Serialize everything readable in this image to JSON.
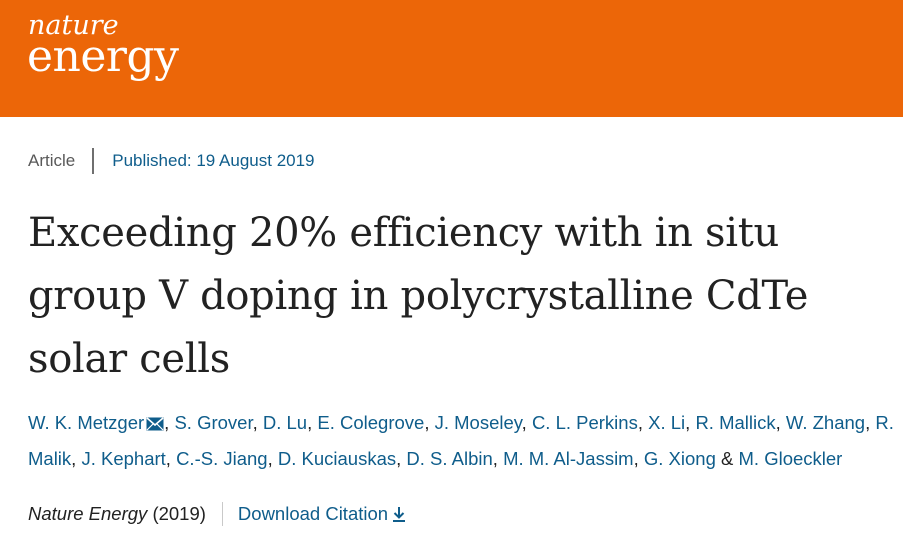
{
  "brand": {
    "line1": "nature",
    "line2": "energy",
    "color": "#ec6608"
  },
  "meta": {
    "article_type": "Article",
    "published": "Published: 19 August 2019"
  },
  "title": {
    "line1": "Exceeding 20% efficiency with in situ",
    "line2": "group V doping in polycrystalline CdTe",
    "line3": "solar cells"
  },
  "authors": {
    "line1": [
      "W. K. Metzger",
      "S. Grover",
      "D. Lu",
      "E. Colegrove",
      "J. Moseley",
      "C. L. Perkins",
      "X. Li",
      "R. Mallick",
      "W. Zhang",
      "R."
    ],
    "line2": [
      "Malik",
      "J. Kephart",
      "C.-S. Jiang",
      "D. Kuciauskas",
      "D. S. Albin",
      "M. M. Al-Jassim",
      "G. Xiong"
    ],
    "conjunction": "&",
    "last": "M. Gloeckler",
    "comma": ","
  },
  "footer": {
    "journal": "Nature Energy",
    "year": "(2019)",
    "download_label": "Download Citation"
  },
  "icons": {
    "mail": "mail-icon",
    "download": "download-icon"
  },
  "colors": {
    "link": "#0f5d8b",
    "text": "#222222",
    "muted": "#595959"
  }
}
